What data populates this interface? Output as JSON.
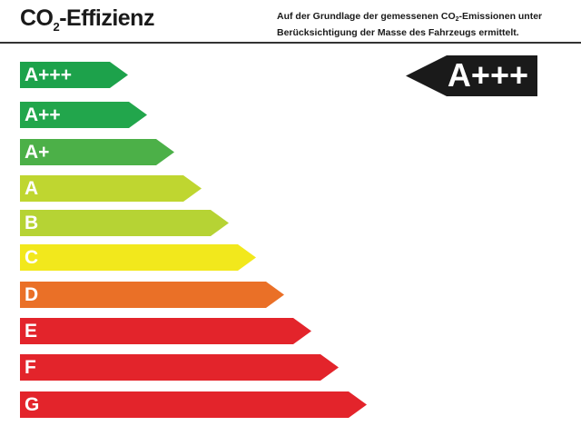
{
  "header": {
    "title_main": "CO",
    "title_sub": "2",
    "title_rest": "-Effizienz",
    "desc_line1_a": "Auf der Grundlage der gemessenen CO",
    "desc_line1_sub": "2",
    "desc_line1_b": "-Emissionen unter",
    "desc_line2": "Berücksichtigung der Masse des Fahrzeugs ermittelt."
  },
  "classes": [
    {
      "label": "A+++",
      "color": "#1da24b"
    },
    {
      "label": "A++",
      "color": "#22a64c"
    },
    {
      "label": "A+",
      "color": "#4cb048"
    },
    {
      "label": "A",
      "color": "#bfd630"
    },
    {
      "label": "B",
      "color": "#b6d334"
    },
    {
      "label": "C",
      "color": "#f2e81c"
    },
    {
      "label": "D",
      "color": "#ea7027"
    },
    {
      "label": "E",
      "color": "#e3242b"
    },
    {
      "label": "F",
      "color": "#e3242b"
    },
    {
      "label": "G",
      "color": "#e3242b"
    }
  ],
  "indicator": {
    "label": "A+++",
    "color": "#1a1a1a"
  }
}
